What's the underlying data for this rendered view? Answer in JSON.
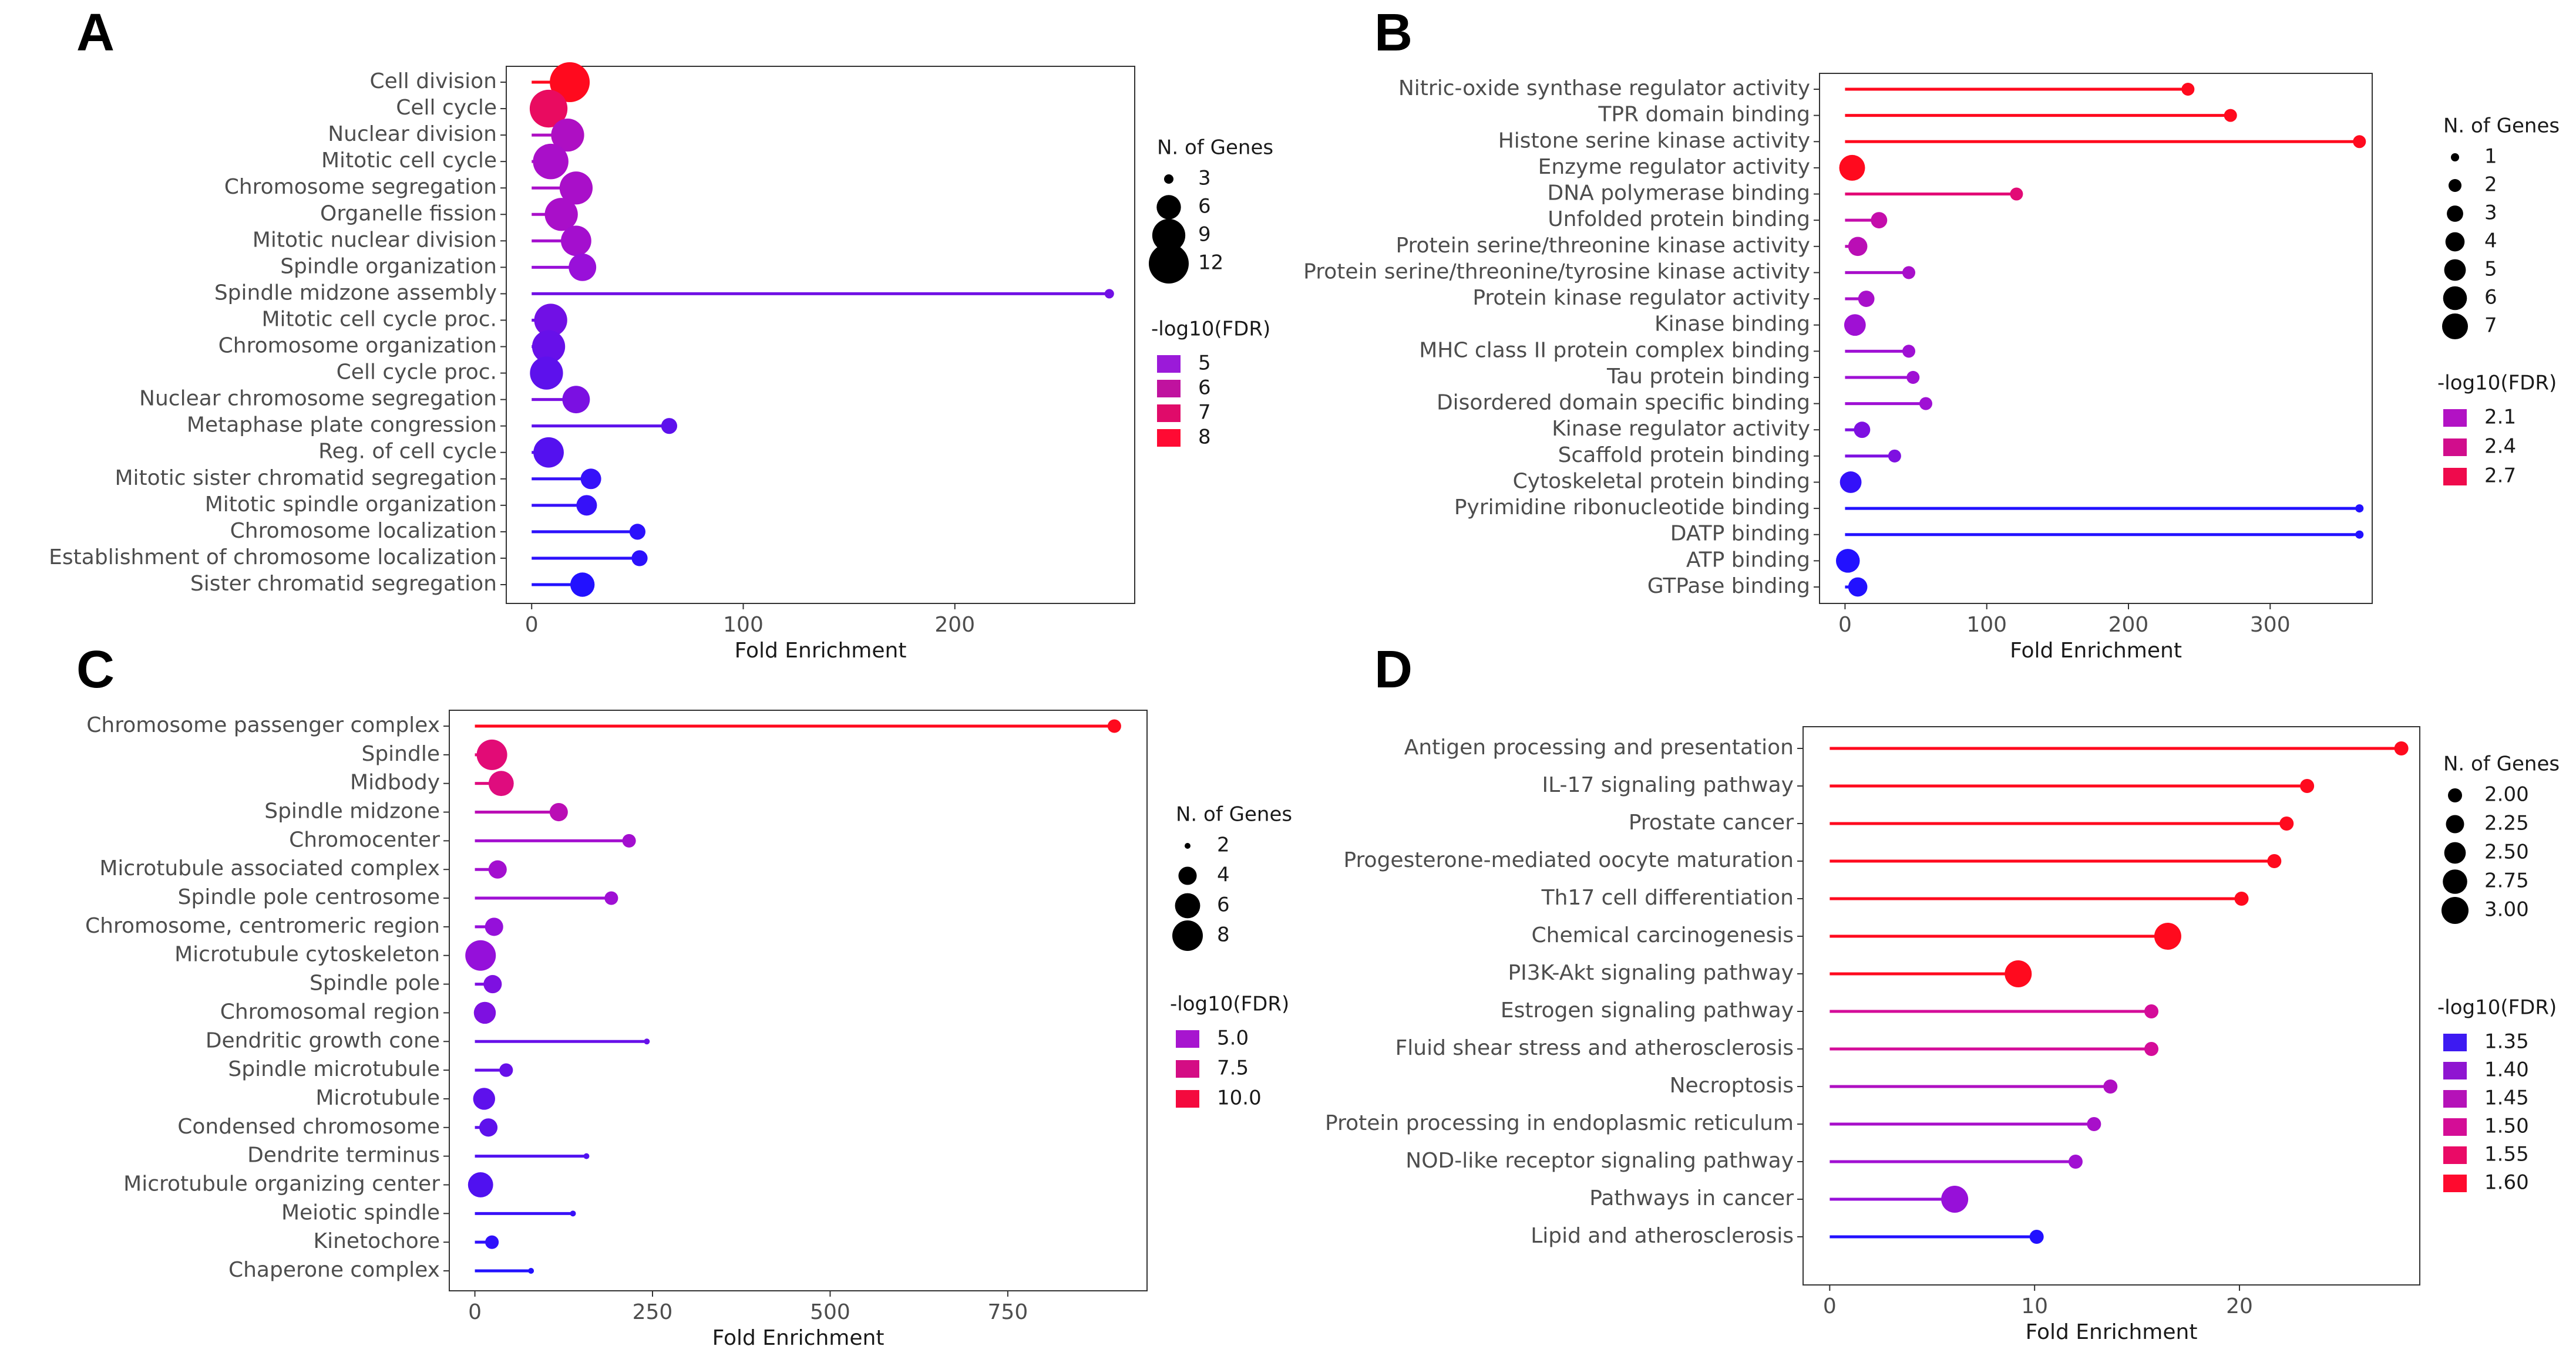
{
  "chart_data": [
    {
      "panel": "A",
      "type": "lollipop",
      "xlabel": "Fold Enrichment",
      "xticks": [
        0,
        100,
        200
      ],
      "xlim": [
        -12,
        285
      ],
      "size_legend_title": "N. of Genes",
      "size_legend": [
        3,
        6,
        9,
        12
      ],
      "size_range": [
        3,
        12
      ],
      "color_legend_title": "-log10(FDR)",
      "color_legend": [
        5,
        6,
        7,
        8
      ],
      "color_range": [
        4.3,
        8
      ],
      "color_legend_colors": [
        "#9b1ad9",
        "#c0129f",
        "#e00b6a",
        "#ff0a33"
      ],
      "terms": [
        {
          "label": "Cell division",
          "value": 18,
          "genes": 12,
          "fdr": 8.0
        },
        {
          "label": "Cell cycle",
          "value": 8,
          "genes": 11,
          "fdr": 7.3
        },
        {
          "label": "Nuclear division",
          "value": 17,
          "genes": 9,
          "fdr": 5.9
        },
        {
          "label": "Mitotic cell cycle",
          "value": 9,
          "genes": 10,
          "fdr": 5.8
        },
        {
          "label": "Chromosome segregation",
          "value": 21,
          "genes": 9,
          "fdr": 5.8
        },
        {
          "label": "Organelle fission",
          "value": 14,
          "genes": 9,
          "fdr": 5.8
        },
        {
          "label": "Mitotic nuclear division",
          "value": 21,
          "genes": 8,
          "fdr": 5.7
        },
        {
          "label": "Spindle organization",
          "value": 24,
          "genes": 7,
          "fdr": 5.5
        },
        {
          "label": "Spindle midzone assembly",
          "value": 273,
          "genes": 3,
          "fdr": 5.1
        },
        {
          "label": "Mitotic cell cycle proc.",
          "value": 9,
          "genes": 9,
          "fdr": 5.1
        },
        {
          "label": "Chromosome organization",
          "value": 8,
          "genes": 9,
          "fdr": 5.0
        },
        {
          "label": "Cell cycle proc.",
          "value": 7,
          "genes": 9,
          "fdr": 4.9
        },
        {
          "label": "Nuclear chromosome segregation",
          "value": 21,
          "genes": 7,
          "fdr": 5.2
        },
        {
          "label": "Metaphase plate congression",
          "value": 65,
          "genes": 4,
          "fdr": 4.9
        },
        {
          "label": "Reg. of cell cycle",
          "value": 8,
          "genes": 8,
          "fdr": 4.8
        },
        {
          "label": "Mitotic sister chromatid segregation",
          "value": 28,
          "genes": 5,
          "fdr": 4.5
        },
        {
          "label": "Mitotic spindle organization",
          "value": 26,
          "genes": 5,
          "fdr": 4.5
        },
        {
          "label": "Chromosome localization",
          "value": 50,
          "genes": 4,
          "fdr": 4.4
        },
        {
          "label": "Establishment of chromosome localization",
          "value": 51,
          "genes": 4,
          "fdr": 4.4
        },
        {
          "label": "Sister chromatid segregation",
          "value": 24,
          "genes": 6,
          "fdr": 4.3
        }
      ]
    },
    {
      "panel": "B",
      "type": "lollipop",
      "xlabel": "Fold Enrichment",
      "xticks": [
        0,
        100,
        200,
        300
      ],
      "xlim": [
        -18,
        372
      ],
      "size_legend_title": "N. of Genes",
      "size_legend": [
        1,
        2,
        3,
        4,
        5,
        6,
        7
      ],
      "size_range": [
        1,
        7
      ],
      "color_legend_title": "-log10(FDR)",
      "color_legend": [
        "2.1",
        "2.4",
        "2.7"
      ],
      "color_range": [
        1.8,
        2.8
      ],
      "color_legend_colors": [
        "#b212c4",
        "#d10d8c",
        "#ef0a4c"
      ],
      "terms": [
        {
          "label": "Nitric-oxide synthase regulator activity",
          "value": 242,
          "genes": 2,
          "fdr": 2.8
        },
        {
          "label": "TPR domain binding",
          "value": 272,
          "genes": 2,
          "fdr": 2.8
        },
        {
          "label": "Histone serine kinase activity",
          "value": 363,
          "genes": 2,
          "fdr": 2.8
        },
        {
          "label": "Enzyme regulator activity",
          "value": 5,
          "genes": 7,
          "fdr": 2.8
        },
        {
          "label": "DNA polymerase binding",
          "value": 121,
          "genes": 2,
          "fdr": 2.55
        },
        {
          "label": "Unfolded protein binding",
          "value": 24,
          "genes": 3,
          "fdr": 2.35
        },
        {
          "label": "Protein serine/threonine kinase activity",
          "value": 9,
          "genes": 4,
          "fdr": 2.3
        },
        {
          "label": "Protein serine/threonine/tyrosine kinase activity",
          "value": 45,
          "genes": 2,
          "fdr": 2.2
        },
        {
          "label": "Protein kinase regulator activity",
          "value": 15,
          "genes": 3,
          "fdr": 2.2
        },
        {
          "label": "Kinase binding",
          "value": 7,
          "genes": 5,
          "fdr": 2.15
        },
        {
          "label": "MHC class II protein complex binding",
          "value": 45,
          "genes": 2,
          "fdr": 2.15
        },
        {
          "label": "Tau protein binding",
          "value": 48,
          "genes": 2,
          "fdr": 2.15
        },
        {
          "label": "Disordered domain specific binding",
          "value": 57,
          "genes": 2,
          "fdr": 2.15
        },
        {
          "label": "Kinase regulator activity",
          "value": 12,
          "genes": 3,
          "fdr": 2.05
        },
        {
          "label": "Scaffold protein binding",
          "value": 35,
          "genes": 2,
          "fdr": 2.05
        },
        {
          "label": "Cytoskeletal protein binding",
          "value": 4,
          "genes": 5,
          "fdr": 1.85
        },
        {
          "label": "Pyrimidine ribonucleotide binding",
          "value": 363,
          "genes": 1,
          "fdr": 1.8
        },
        {
          "label": "DATP binding",
          "value": 363,
          "genes": 1,
          "fdr": 1.8
        },
        {
          "label": "ATP binding",
          "value": 2,
          "genes": 6,
          "fdr": 1.8
        },
        {
          "label": "GTPase binding",
          "value": 9,
          "genes": 4,
          "fdr": 1.8
        }
      ]
    },
    {
      "panel": "C",
      "type": "lollipop",
      "xlabel": "Fold Enrichment",
      "xticks": [
        0,
        250,
        500,
        750
      ],
      "xlim": [
        -36,
        946
      ],
      "size_legend_title": "N. of Genes",
      "size_legend": [
        2,
        4,
        6,
        8
      ],
      "size_range": [
        2,
        8
      ],
      "color_legend_title": "-log10(FDR)",
      "color_legend": [
        "5.0",
        "7.5",
        "10.0"
      ],
      "color_range": [
        3,
        11
      ],
      "color_legend_colors": [
        "#a715cf",
        "#d40d84",
        "#f40a3e"
      ],
      "terms": [
        {
          "label": "Chromosome passenger complex",
          "value": 900,
          "genes": 3,
          "fdr": 11.0
        },
        {
          "label": "Spindle",
          "value": 24,
          "genes": 8,
          "fdr": 9.0
        },
        {
          "label": "Midbody",
          "value": 37,
          "genes": 6,
          "fdr": 8.8
        },
        {
          "label": "Spindle midzone",
          "value": 118,
          "genes": 4,
          "fdr": 7.0
        },
        {
          "label": "Chromocenter",
          "value": 217,
          "genes": 3,
          "fdr": 6.0
        },
        {
          "label": "Microtubule associated complex",
          "value": 32,
          "genes": 4,
          "fdr": 6.0
        },
        {
          "label": "Spindle pole centrosome",
          "value": 192,
          "genes": 3,
          "fdr": 5.8
        },
        {
          "label": "Chromosome, centromeric region",
          "value": 27,
          "genes": 4,
          "fdr": 5.5
        },
        {
          "label": "Microtubule cytoskeleton",
          "value": 8,
          "genes": 8,
          "fdr": 5.5
        },
        {
          "label": "Spindle pole",
          "value": 25,
          "genes": 4,
          "fdr": 5.0
        },
        {
          "label": "Chromosomal region",
          "value": 14,
          "genes": 5,
          "fdr": 5.0
        },
        {
          "label": "Dendritic growth cone",
          "value": 242,
          "genes": 2,
          "fdr": 4.5
        },
        {
          "label": "Spindle microtubule",
          "value": 44,
          "genes": 3,
          "fdr": 4.5
        },
        {
          "label": "Microtubule",
          "value": 13,
          "genes": 5,
          "fdr": 4.3
        },
        {
          "label": "Condensed chromosome",
          "value": 19,
          "genes": 4,
          "fdr": 4.3
        },
        {
          "label": "Dendrite terminus",
          "value": 157,
          "genes": 2,
          "fdr": 4.0
        },
        {
          "label": "Microtubule organizing center",
          "value": 8,
          "genes": 6,
          "fdr": 4.0
        },
        {
          "label": "Meiotic spindle",
          "value": 138,
          "genes": 2,
          "fdr": 3.5
        },
        {
          "label": "Kinetochore",
          "value": 24,
          "genes": 3,
          "fdr": 3.3
        },
        {
          "label": "Chaperone complex",
          "value": 79,
          "genes": 2,
          "fdr": 3.0
        }
      ]
    },
    {
      "panel": "D",
      "type": "lollipop",
      "xlabel": "Fold Enrichment",
      "xticks": [
        0,
        10,
        20
      ],
      "xlim": [
        -1.3,
        28.8
      ],
      "size_legend_title": "N. of Genes",
      "size_legend": [
        "2.00",
        "2.25",
        "2.50",
        "2.75",
        "3.00"
      ],
      "size_range": [
        2,
        3
      ],
      "color_legend_title": "-log10(FDR)",
      "color_legend": [
        "1.35",
        "1.40",
        "1.45",
        "1.50",
        "1.55",
        "1.60"
      ],
      "color_range": [
        1.35,
        1.6
      ],
      "color_legend_colors": [
        "#3d1af2",
        "#8f15d1",
        "#b512b8",
        "#d40d96",
        "#ea0a66",
        "#ff0a2e"
      ],
      "terms": [
        {
          "label": "Antigen processing and presentation",
          "value": 27.9,
          "genes": 2,
          "fdr": 1.6
        },
        {
          "label": "IL-17 signaling pathway",
          "value": 23.3,
          "genes": 2,
          "fdr": 1.6
        },
        {
          "label": "Prostate cancer",
          "value": 22.3,
          "genes": 2,
          "fdr": 1.6
        },
        {
          "label": "Progesterone-mediated oocyte maturation",
          "value": 21.7,
          "genes": 2,
          "fdr": 1.6
        },
        {
          "label": "Th17 cell differentiation",
          "value": 20.1,
          "genes": 2,
          "fdr": 1.6
        },
        {
          "label": "Chemical carcinogenesis",
          "value": 16.5,
          "genes": 3,
          "fdr": 1.6
        },
        {
          "label": "PI3K-Akt signaling pathway",
          "value": 9.2,
          "genes": 3,
          "fdr": 1.6
        },
        {
          "label": "Estrogen signaling pathway",
          "value": 15.7,
          "genes": 2,
          "fdr": 1.51
        },
        {
          "label": "Fluid shear stress and atherosclerosis",
          "value": 15.7,
          "genes": 2,
          "fdr": 1.51
        },
        {
          "label": "Necroptosis",
          "value": 13.7,
          "genes": 2,
          "fdr": 1.46
        },
        {
          "label": "Protein processing in endoplasmic reticulum",
          "value": 12.9,
          "genes": 2,
          "fdr": 1.45
        },
        {
          "label": "NOD-like receptor signaling pathway",
          "value": 12.0,
          "genes": 2,
          "fdr": 1.44
        },
        {
          "label": "Pathways in cancer",
          "value": 6.1,
          "genes": 3,
          "fdr": 1.43
        },
        {
          "label": "Lipid and atherosclerosis",
          "value": 10.1,
          "genes": 2,
          "fdr": 1.35
        }
      ]
    }
  ]
}
